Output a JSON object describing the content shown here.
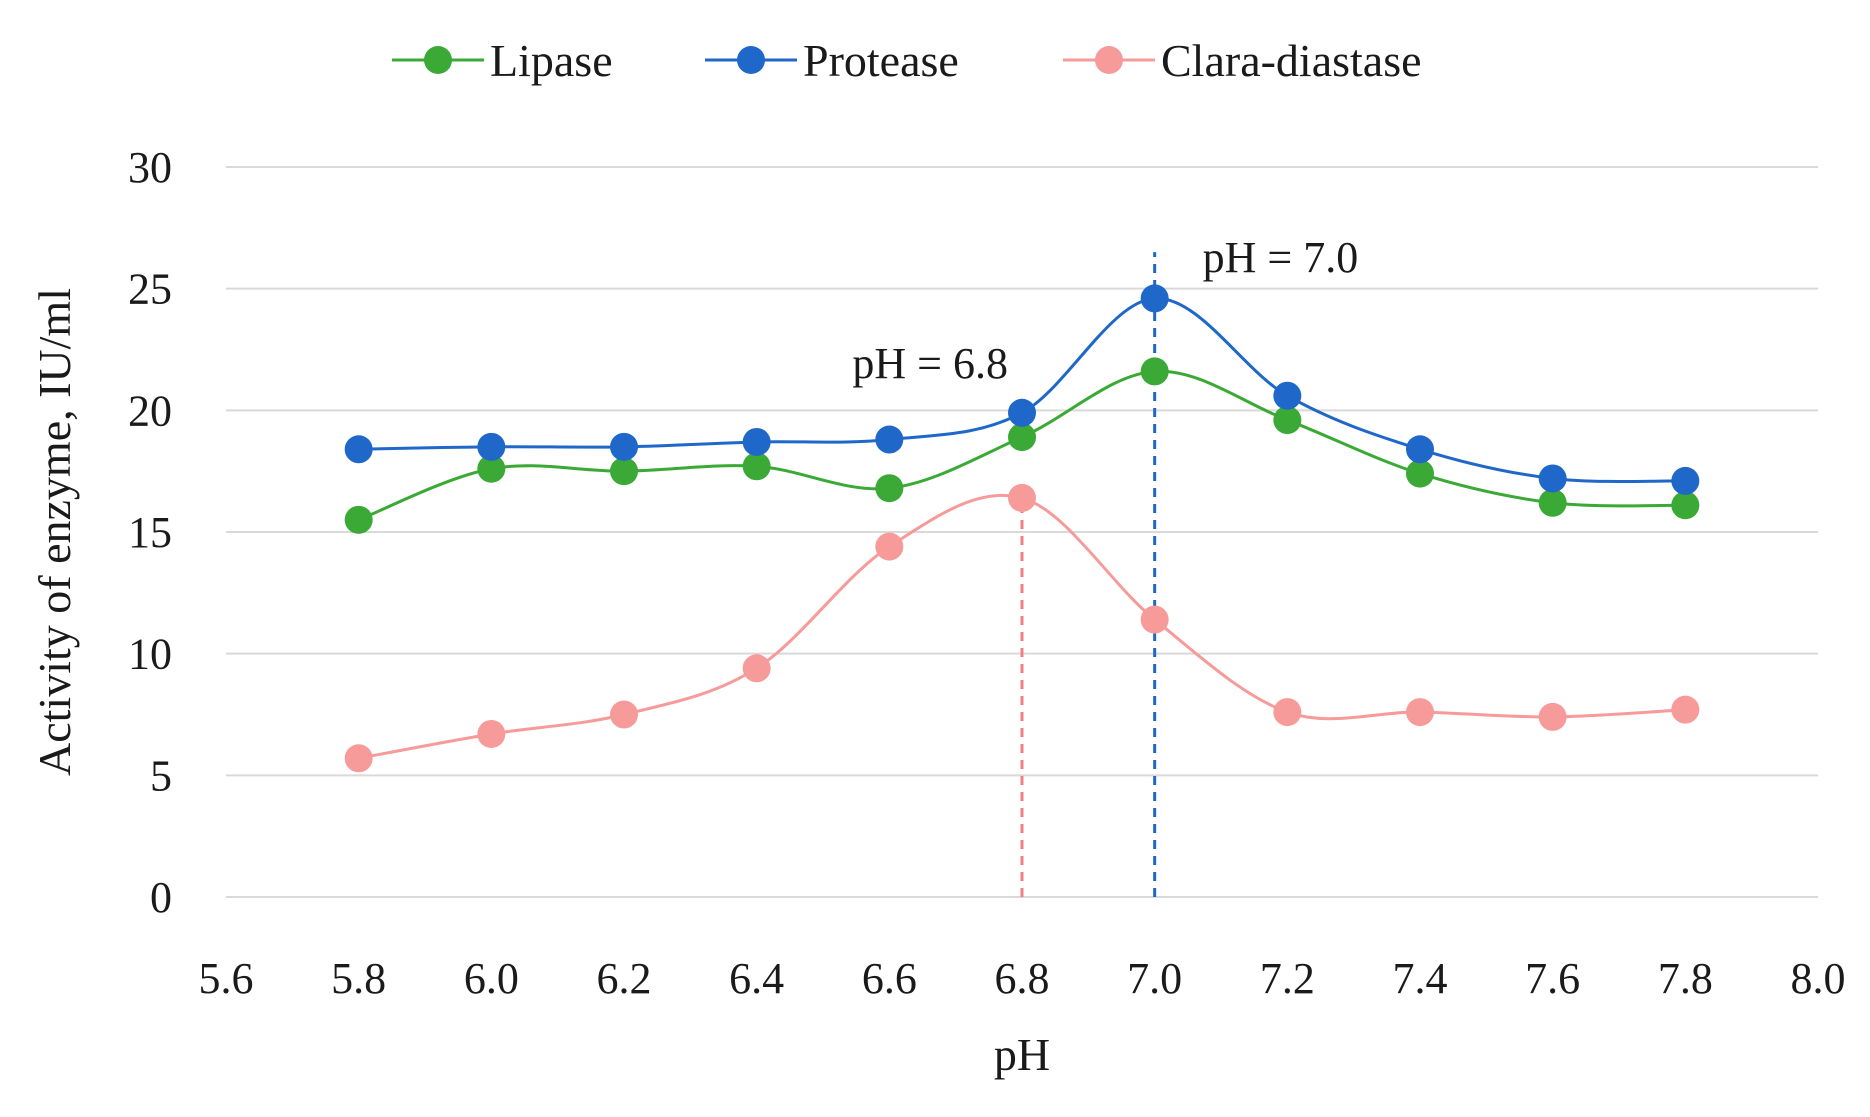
{
  "chart_data": {
    "type": "line",
    "title": "",
    "xlabel": "pH",
    "ylabel": "Activity of enzyme, IU/ml",
    "xlim": [
      5.6,
      8.0
    ],
    "ylim": [
      0,
      30
    ],
    "x_ticks": [
      "5.6",
      "5.8",
      "6.0",
      "6.2",
      "6.4",
      "6.6",
      "6.8",
      "7.0",
      "7.2",
      "7.4",
      "7.6",
      "7.8",
      "8.0"
    ],
    "y_ticks": [
      "0",
      "5",
      "10",
      "15",
      "20",
      "25",
      "30"
    ],
    "grid": "horizontal",
    "legend_position": "top",
    "x": [
      5.8,
      6.0,
      6.2,
      6.4,
      6.6,
      6.8,
      7.0,
      7.2,
      7.4,
      7.6,
      7.8
    ],
    "series": [
      {
        "name": "Lipase",
        "color": "#3aa935",
        "values": [
          15.5,
          17.6,
          17.5,
          17.7,
          16.8,
          18.9,
          21.6,
          19.6,
          17.4,
          16.2,
          16.1
        ]
      },
      {
        "name": "Protease",
        "color": "#1f68c9",
        "values": [
          18.4,
          18.5,
          18.5,
          18.7,
          18.8,
          19.9,
          24.6,
          20.6,
          18.4,
          17.2,
          17.1
        ]
      },
      {
        "name": "Clara-diastase",
        "color": "#f79a9a",
        "values": [
          5.7,
          6.7,
          7.5,
          9.4,
          14.4,
          16.4,
          11.4,
          7.6,
          7.6,
          7.4,
          7.7
        ]
      }
    ],
    "reference_lines": [
      {
        "x": 6.8,
        "y_top": 16.4,
        "color": "#f08080",
        "label": "pH = 6.8"
      },
      {
        "x": 7.0,
        "y_top": 26.5,
        "color": "#1f68c9",
        "label": "pH = 7.0"
      }
    ]
  }
}
